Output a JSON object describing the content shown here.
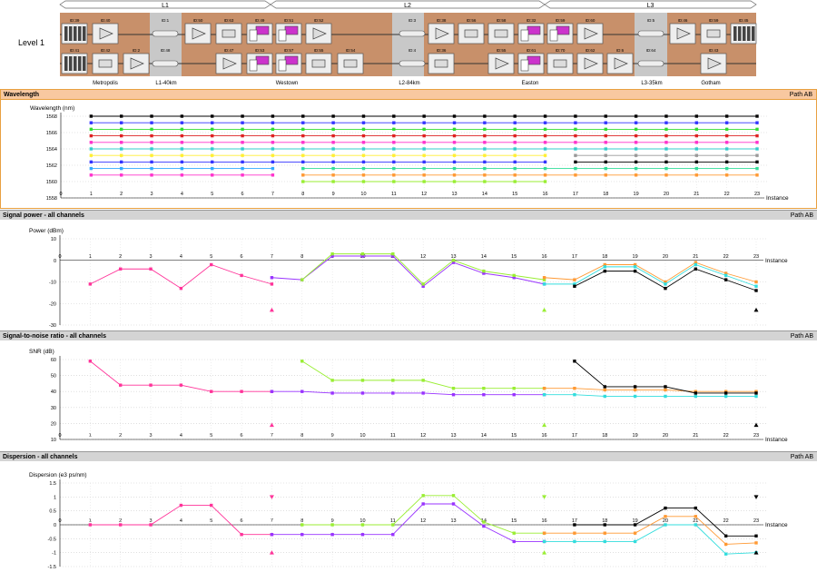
{
  "topology": {
    "level_label": "Level 1",
    "spans": [
      {
        "label": "L1"
      },
      {
        "label": "L2"
      },
      {
        "label": "L3"
      }
    ],
    "top_ids": [
      "ID:39",
      "ID:40",
      "ID:1",
      "ID:50",
      "ID:63",
      "ID:49",
      "ID:51",
      "ID:52",
      "ID:3",
      "ID:38",
      "ID:56",
      "ID:58",
      "ID:32",
      "ID:59",
      "ID:60",
      "ID:5",
      "ID:46",
      "ID:59",
      "ID:45"
    ],
    "bottom_ids": [
      "ID:41",
      "ID:42",
      "ID:2",
      "ID:48",
      "ID:47",
      "ID:53",
      "ID:57",
      "ID:55",
      "ID:54",
      "ID:4",
      "ID:36",
      "ID:55",
      "ID:61",
      "ID:70",
      "ID:62",
      "ID:6",
      "ID:64",
      "ID:43"
    ],
    "sites": [
      "Metropolis",
      "L1-40km",
      "Westown",
      "L2-84km",
      "Easton",
      "L3-35km",
      "Gotham"
    ],
    "colors": {
      "site_bg": "#c8906a",
      "fiber_bg": "#c8c8c8"
    }
  },
  "panels": {
    "wavelength": {
      "title": "Wavelength",
      "path": "Path AB"
    },
    "power": {
      "title": "Signal power - all channels",
      "path": "Path AB"
    },
    "snr": {
      "title": "Signal-to-noise ratio - all channels",
      "path": "Path AB"
    },
    "dispersion": {
      "title": "Dispersion - all channels",
      "path": "Path AB"
    }
  },
  "chart_data": [
    {
      "type": "scatter",
      "ylabel": "Wavelength (nm)",
      "xlabel": "Instance",
      "xlim": [
        0,
        23
      ],
      "ylim": [
        1558,
        1568
      ],
      "y_ticks": [
        1558,
        1560,
        1562,
        1564,
        1566,
        1568
      ],
      "grid": true,
      "series": [
        {
          "color": "#000000",
          "y": 1568,
          "x": [
            1,
            2,
            3,
            4,
            5,
            6,
            7,
            8,
            9,
            10,
            11,
            12,
            13,
            14,
            15,
            16,
            17,
            18,
            19,
            20,
            21,
            22,
            23
          ]
        },
        {
          "color": "#3333ff",
          "y": 1567.2,
          "x": [
            1,
            2,
            3,
            4,
            5,
            6,
            7,
            8,
            9,
            10,
            11,
            12,
            13,
            14,
            15,
            16,
            17,
            18,
            19,
            20,
            21,
            22,
            23
          ]
        },
        {
          "color": "#33dd33",
          "y": 1566.4,
          "x": [
            1,
            2,
            3,
            4,
            5,
            6,
            7,
            8,
            9,
            10,
            11,
            12,
            13,
            14,
            15,
            16,
            17,
            18,
            19,
            20,
            21,
            22,
            23
          ]
        },
        {
          "color": "#dd2222",
          "y": 1565.6,
          "x": [
            1,
            2,
            3,
            4,
            5,
            6,
            7,
            8,
            9,
            10,
            11,
            12,
            13,
            14,
            15,
            16,
            17,
            18,
            19,
            20,
            21,
            22,
            23
          ]
        },
        {
          "color": "#ff33cc",
          "y": 1564.8,
          "x": [
            1,
            2,
            3,
            4,
            5,
            6,
            7,
            8,
            9,
            10,
            11,
            12,
            13,
            14,
            15,
            16,
            17,
            18,
            19,
            20,
            21,
            22,
            23
          ]
        },
        {
          "color": "#33cccc",
          "y": 1564,
          "x": [
            1,
            2,
            3,
            4,
            5,
            6,
            7,
            8,
            9,
            10,
            11,
            12,
            13,
            14,
            15,
            16,
            17,
            18,
            19,
            20,
            21,
            22,
            23
          ]
        },
        {
          "color": "#ffee33",
          "y": 1563.2,
          "x": [
            1,
            2,
            3,
            4,
            5,
            6,
            7,
            8,
            9,
            10,
            11,
            12,
            13,
            14,
            15,
            16
          ]
        },
        {
          "color": "#999999",
          "y": 1563.2,
          "x": [
            17,
            18,
            19,
            20,
            21,
            22,
            23
          ]
        },
        {
          "color": "#3333ff",
          "y": 1562.4,
          "x": [
            1,
            2,
            3,
            4,
            5,
            6,
            7,
            8,
            9,
            10,
            11,
            12,
            13,
            14,
            15,
            16
          ]
        },
        {
          "color": "#000000",
          "y": 1562.4,
          "x": [
            17,
            18,
            19,
            20,
            21,
            22,
            23
          ]
        },
        {
          "color": "#33aaff",
          "y": 1561.6,
          "x": [
            1,
            2,
            3,
            4,
            5,
            6,
            7
          ]
        },
        {
          "color": "#33dd99",
          "y": 1561.6,
          "x": [
            8,
            9,
            10,
            11,
            12,
            13,
            14,
            15,
            16,
            17,
            18,
            19,
            20,
            21,
            22,
            23
          ]
        },
        {
          "color": "#ff33cc",
          "y": 1560.8,
          "x": [
            1,
            2,
            3,
            4,
            5,
            6,
            7
          ]
        },
        {
          "color": "#ff9933",
          "y": 1560.8,
          "x": [
            8,
            9,
            10,
            11,
            12,
            13,
            14,
            15,
            16,
            17,
            18,
            19,
            20,
            21,
            22,
            23
          ]
        },
        {
          "color": "#99ee33",
          "y": 1560,
          "x": [
            8,
            9,
            10,
            11,
            12,
            13,
            14,
            15,
            16
          ]
        }
      ]
    },
    {
      "type": "line",
      "ylabel": "Power (dBm)",
      "xlabel": "Instance",
      "xlim": [
        0,
        23
      ],
      "ylim": [
        -30,
        10
      ],
      "y_ticks": [
        10,
        0,
        -10,
        -20,
        -30
      ],
      "grid": true,
      "series": [
        {
          "color": "#ff3399",
          "x": [
            1,
            2,
            3,
            4,
            5,
            6,
            7
          ],
          "y": [
            -11,
            -4,
            -4,
            -13,
            -2,
            -7,
            -11
          ]
        },
        {
          "color": "#9933ff",
          "x": [
            7,
            8,
            9,
            10,
            11,
            12,
            13,
            14,
            15,
            16
          ],
          "y": [
            -8,
            -9,
            2,
            2,
            2,
            -12,
            -1,
            -6,
            -8,
            -11
          ]
        },
        {
          "color": "#99ee33",
          "x": [
            8,
            9,
            10,
            11,
            12,
            13,
            14,
            15,
            16
          ],
          "y": [
            -9,
            3,
            3,
            3,
            -11,
            0,
            -5,
            -7,
            -9
          ]
        },
        {
          "color": "#ff9933",
          "x": [
            16,
            17,
            18,
            19,
            20,
            21,
            22,
            23
          ],
          "y": [
            -8,
            -9,
            -2,
            -2,
            -10,
            -1,
            -6,
            -10
          ]
        },
        {
          "color": "#33dddd",
          "x": [
            16,
            17,
            18,
            19,
            20,
            21,
            22,
            23
          ],
          "y": [
            -11,
            -11,
            -3,
            -3,
            -11,
            -2,
            -7,
            -12
          ]
        },
        {
          "color": "#000000",
          "x": [
            17,
            18,
            19,
            20,
            21,
            22,
            23
          ],
          "y": [
            -12,
            -5,
            -5,
            -13,
            -4,
            -9,
            -14
          ]
        }
      ],
      "markers": [
        {
          "x": 7,
          "y": -23,
          "color": "#ff3399",
          "shape": "triangle-up"
        },
        {
          "x": 16,
          "y": -23,
          "color": "#99ee33",
          "shape": "triangle-up"
        },
        {
          "x": 23,
          "y": -23,
          "color": "#000000",
          "shape": "triangle-up"
        }
      ]
    },
    {
      "type": "line",
      "ylabel": "SNR (dB)",
      "xlabel": "Instance",
      "xlim": [
        0,
        23
      ],
      "ylim": [
        10,
        60
      ],
      "y_ticks": [
        60,
        50,
        40,
        30,
        20,
        10
      ],
      "grid": true,
      "series": [
        {
          "color": "#ff3399",
          "x": [
            1,
            2,
            3,
            4,
            5,
            6,
            7
          ],
          "y": [
            59,
            44,
            44,
            44,
            40,
            40,
            40
          ]
        },
        {
          "color": "#9933ff",
          "x": [
            7,
            8,
            9,
            10,
            11,
            12,
            13,
            14,
            15,
            16
          ],
          "y": [
            40,
            40,
            39,
            39,
            39,
            39,
            38,
            38,
            38,
            38
          ]
        },
        {
          "color": "#99ee33",
          "x": [
            8,
            9,
            10,
            11,
            12,
            13,
            14,
            15,
            16
          ],
          "y": [
            59,
            47,
            47,
            47,
            47,
            42,
            42,
            42,
            42
          ]
        },
        {
          "color": "#ff9933",
          "x": [
            16,
            17,
            18,
            19,
            20,
            21,
            22,
            23
          ],
          "y": [
            42,
            42,
            41,
            41,
            41,
            40,
            40,
            40
          ]
        },
        {
          "color": "#33dddd",
          "x": [
            16,
            17,
            18,
            19,
            20,
            21,
            22,
            23
          ],
          "y": [
            38,
            38,
            37,
            37,
            37,
            37,
            37,
            37
          ]
        },
        {
          "color": "#000000",
          "x": [
            17,
            18,
            19,
            20,
            21,
            22,
            23
          ],
          "y": [
            59,
            43,
            43,
            43,
            39,
            39,
            39
          ]
        }
      ],
      "markers": [
        {
          "x": 7,
          "y": 19,
          "color": "#ff3399",
          "shape": "triangle-up"
        },
        {
          "x": 16,
          "y": 19,
          "color": "#99ee33",
          "shape": "triangle-up"
        },
        {
          "x": 23,
          "y": 19,
          "color": "#000000",
          "shape": "triangle-up"
        }
      ]
    },
    {
      "type": "line",
      "ylabel": "Dispersion (e3 ps/nm)",
      "xlabel": "Instance",
      "xlim": [
        0,
        23
      ],
      "ylim": [
        -1.5,
        1.5
      ],
      "y_ticks": [
        1.5,
        1,
        0.5,
        0,
        -0.5,
        -1,
        -1.5
      ],
      "grid": true,
      "series": [
        {
          "color": "#ff3399",
          "x": [
            1,
            2,
            3,
            4,
            5,
            6,
            7
          ],
          "y": [
            0,
            0,
            0,
            0.7,
            0.7,
            -0.35,
            -0.35
          ]
        },
        {
          "color": "#9933ff",
          "x": [
            7,
            8,
            9,
            10,
            11,
            12,
            13,
            14,
            15,
            16
          ],
          "y": [
            -0.35,
            -0.35,
            -0.35,
            -0.35,
            -0.35,
            0.75,
            0.75,
            -0.05,
            -0.6,
            -0.6
          ]
        },
        {
          "color": "#99ee33",
          "x": [
            8,
            9,
            10,
            11,
            12,
            13,
            14,
            15,
            16
          ],
          "y": [
            0,
            0,
            0,
            0,
            1.05,
            1.05,
            0.1,
            -0.3,
            -0.3
          ]
        },
        {
          "color": "#ff9933",
          "x": [
            16,
            17,
            18,
            19,
            20,
            21,
            22,
            23
          ],
          "y": [
            -0.3,
            -0.3,
            -0.3,
            -0.3,
            0.3,
            0.3,
            -0.7,
            -0.65
          ]
        },
        {
          "color": "#33dddd",
          "x": [
            16,
            17,
            18,
            19,
            20,
            21,
            22,
            23
          ],
          "y": [
            -0.6,
            -0.6,
            -0.6,
            -0.6,
            0,
            0,
            -1.05,
            -1
          ]
        },
        {
          "color": "#000000",
          "x": [
            17,
            18,
            19,
            20,
            21,
            22,
            23
          ],
          "y": [
            0,
            0,
            0,
            0.6,
            0.6,
            -0.4,
            -0.4
          ]
        }
      ],
      "markers": [
        {
          "x": 7,
          "y": 1,
          "color": "#ff3399",
          "shape": "triangle-down"
        },
        {
          "x": 7,
          "y": -1,
          "color": "#ff3399",
          "shape": "triangle-up"
        },
        {
          "x": 16,
          "y": 1,
          "color": "#99ee33",
          "shape": "triangle-down"
        },
        {
          "x": 16,
          "y": -1,
          "color": "#99ee33",
          "shape": "triangle-up"
        },
        {
          "x": 23,
          "y": 1,
          "color": "#000000",
          "shape": "triangle-down"
        },
        {
          "x": 23,
          "y": -1,
          "color": "#000000",
          "shape": "triangle-up"
        }
      ]
    }
  ]
}
